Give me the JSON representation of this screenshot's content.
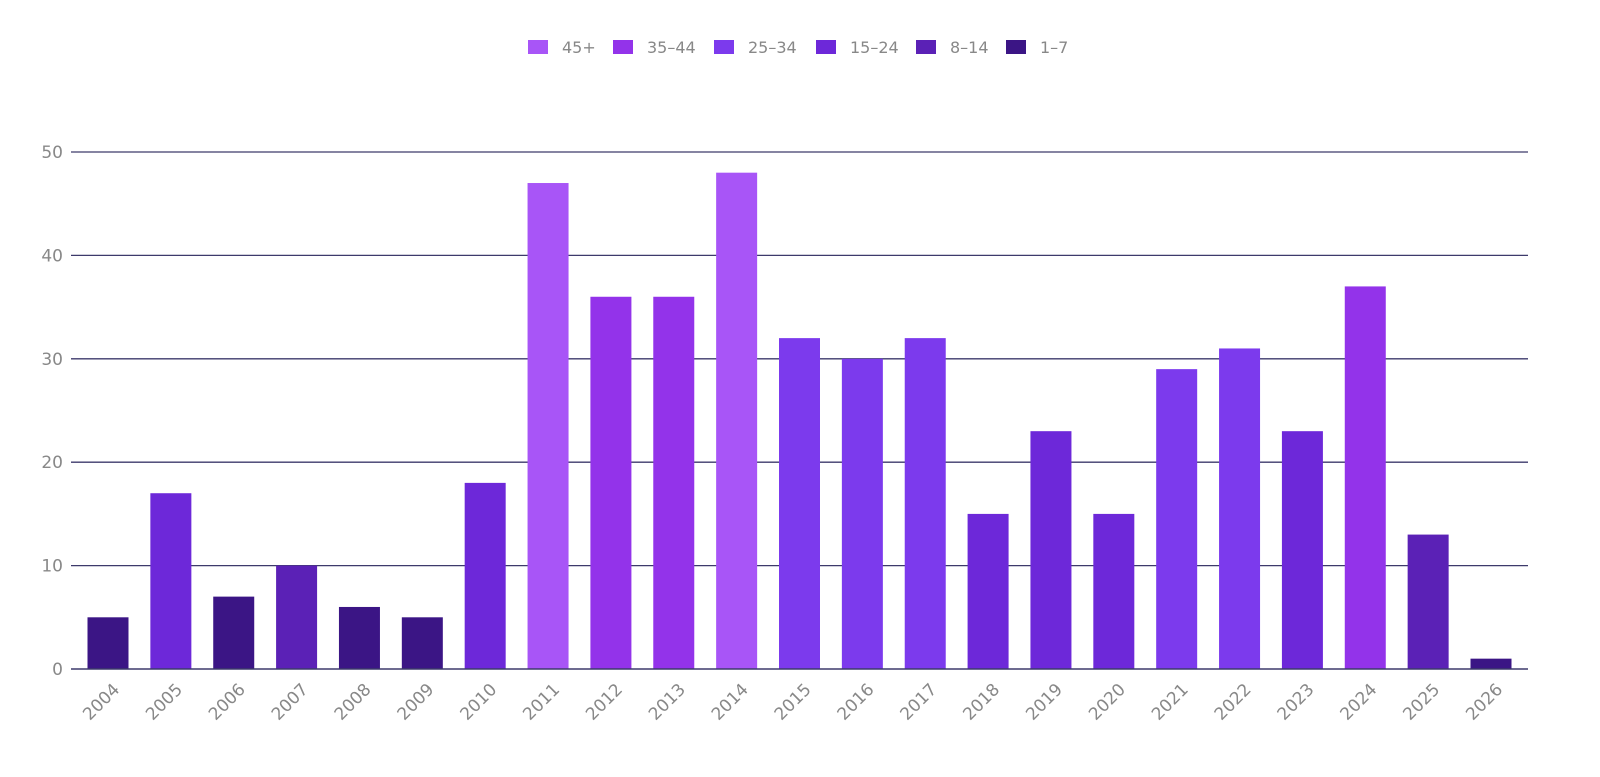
{
  "chart_data": {
    "type": "bar",
    "title": "",
    "xlabel": "",
    "ylabel": "",
    "ylim": [
      0,
      50
    ],
    "y_ticks": [
      0,
      10,
      20,
      30,
      40,
      50
    ],
    "grid": true,
    "legend_placement": "top-center",
    "legend": [
      {
        "label": "45+",
        "color": "#a855f7"
      },
      {
        "label": "35–44",
        "color": "#9333ea"
      },
      {
        "label": "25–34",
        "color": "#7c3aed"
      },
      {
        "label": "15–24",
        "color": "#6d28d9"
      },
      {
        "label": "8–14",
        "color": "#5b21b6"
      },
      {
        "label": "1–7",
        "color": "#3b1585"
      }
    ],
    "categories": [
      "2004",
      "2005",
      "2006",
      "2007",
      "2008",
      "2009",
      "2010",
      "2011",
      "2012",
      "2013",
      "2014",
      "2015",
      "2016",
      "2017",
      "2018",
      "2019",
      "2020",
      "2021",
      "2022",
      "2023",
      "2024",
      "2025",
      "2026"
    ],
    "values": [
      5,
      17,
      7,
      10,
      6,
      5,
      18,
      47,
      36,
      36,
      48,
      32,
      30,
      32,
      15,
      23,
      15,
      29,
      31,
      23,
      37,
      13,
      1
    ],
    "bar_colors": [
      "#3b1585",
      "#6d28d9",
      "#3b1585",
      "#5b21b6",
      "#3b1585",
      "#3b1585",
      "#6d28d9",
      "#a855f7",
      "#9333ea",
      "#9333ea",
      "#a855f7",
      "#7c3aed",
      "#7c3aed",
      "#7c3aed",
      "#6d28d9",
      "#6d28d9",
      "#6d28d9",
      "#7c3aed",
      "#7c3aed",
      "#6d28d9",
      "#9333ea",
      "#5b21b6",
      "#3b1585"
    ]
  }
}
